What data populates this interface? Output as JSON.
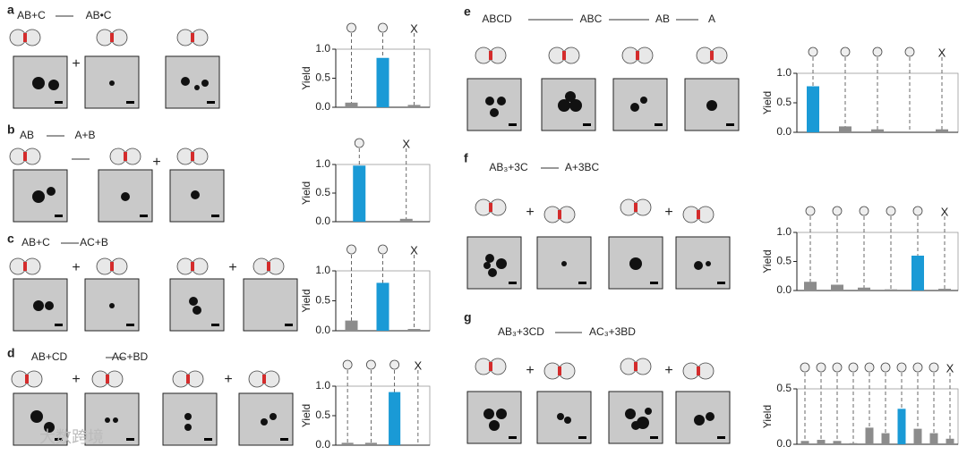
{
  "panels": [
    {
      "label": "a",
      "equation": [
        "AB+C",
        "AB•C"
      ],
      "operators": [
        "+"
      ]
    },
    {
      "label": "b",
      "equation": [
        "AB",
        "A+B"
      ],
      "operators": [
        "+"
      ]
    },
    {
      "label": "c",
      "equation": [
        "AB+C",
        "AC+B"
      ],
      "operators": [
        "+",
        "+"
      ]
    },
    {
      "label": "d",
      "equation": [
        "AB+CD",
        "AC+BD"
      ],
      "operators": [
        "+",
        "+"
      ]
    },
    {
      "label": "e",
      "equation": [
        "ABCD",
        "ABC",
        "AB",
        "A"
      ],
      "operators": []
    },
    {
      "label": "f",
      "equation": [
        "AB₃+3C",
        "A+3BC"
      ],
      "operators": [
        "+",
        "+"
      ]
    },
    {
      "label": "g",
      "equation": [
        "AB₃+3CD",
        "AC₃+3BD"
      ],
      "operators": [
        "+",
        "+"
      ]
    }
  ],
  "watermark": "大数跨境",
  "chart_data": [
    {
      "type": "bar",
      "y_label": "Yield",
      "categories": [
        null,
        null,
        "X"
      ],
      "values": [
        0.08,
        0.85,
        0.04
      ],
      "colors": [
        "#8c8c8c",
        "#1a9ad6",
        "#8c8c8c"
      ],
      "ylim": [
        0,
        1.0
      ],
      "yticks": [
        {
          "value": 0,
          "label": "0.0"
        },
        {
          "value": 0.5,
          "label": "0.5"
        },
        {
          "value": 1.0,
          "label": "1.0"
        }
      ]
    },
    {
      "type": "bar",
      "y_label": "Yield",
      "categories": [
        null,
        "X"
      ],
      "values": [
        0.98,
        0.05
      ],
      "colors": [
        "#1a9ad6",
        "#8c8c8c"
      ],
      "ylim": [
        0,
        1.0
      ],
      "yticks": [
        {
          "value": 0,
          "label": "0.0"
        },
        {
          "value": 0.5,
          "label": "0.5"
        },
        {
          "value": 1.0,
          "label": "1.0"
        }
      ]
    },
    {
      "type": "bar",
      "y_label": "Yield",
      "categories": [
        null,
        null,
        "X"
      ],
      "values": [
        0.17,
        0.8,
        0.03
      ],
      "colors": [
        "#8c8c8c",
        "#1a9ad6",
        "#8c8c8c"
      ],
      "ylim": [
        0,
        1.0
      ],
      "yticks": [
        {
          "value": 0,
          "label": "0.0"
        },
        {
          "value": 0.5,
          "label": "0.5"
        },
        {
          "value": 1.0,
          "label": "1.0"
        }
      ]
    },
    {
      "type": "bar",
      "y_label": "Yield",
      "categories": [
        null,
        null,
        null,
        "X"
      ],
      "values": [
        0.04,
        0.04,
        0.9,
        0
      ],
      "colors": [
        "#8c8c8c",
        "#8c8c8c",
        "#1a9ad6",
        "#8c8c8c"
      ],
      "ylim": [
        0,
        1.0
      ],
      "yticks": [
        {
          "value": 0,
          "label": "0.0"
        },
        {
          "value": 0.5,
          "label": "0.5"
        },
        {
          "value": 1.0,
          "label": "1.0"
        }
      ]
    },
    {
      "type": "bar",
      "y_label": "Yield",
      "categories": [
        null,
        null,
        null,
        null,
        "X"
      ],
      "values": [
        0.78,
        0.1,
        0.05,
        0,
        0.05
      ],
      "colors": [
        "#1a9ad6",
        "#8c8c8c",
        "#8c8c8c",
        "#8c8c8c",
        "#8c8c8c"
      ],
      "ylim": [
        0,
        1.0
      ],
      "yticks": [
        {
          "value": 0,
          "label": "0.0"
        },
        {
          "value": 0.5,
          "label": "0.5"
        },
        {
          "value": 1.0,
          "label": "1.0"
        }
      ]
    },
    {
      "type": "bar",
      "y_label": "Yield",
      "categories": [
        null,
        null,
        null,
        null,
        null,
        "X"
      ],
      "values": [
        0.15,
        0.1,
        0.05,
        0.02,
        0.6,
        0.03
      ],
      "colors": [
        "#8c8c8c",
        "#8c8c8c",
        "#8c8c8c",
        "#8c8c8c",
        "#1a9ad6",
        "#8c8c8c"
      ],
      "ylim": [
        0,
        1.0
      ],
      "yticks": [
        {
          "value": 0,
          "label": "0.0"
        },
        {
          "value": 0.5,
          "label": "0.5"
        },
        {
          "value": 1.0,
          "label": "1.0"
        }
      ]
    },
    {
      "type": "bar",
      "y_label": "Yield",
      "categories": [
        null,
        null,
        null,
        null,
        null,
        null,
        null,
        null,
        null,
        "X"
      ],
      "values": [
        0.03,
        0.04,
        0.03,
        0.01,
        0.15,
        0.1,
        0.32,
        0.14,
        0.1,
        0.05
      ],
      "colors": [
        "#8c8c8c",
        "#8c8c8c",
        "#8c8c8c",
        "#8c8c8c",
        "#8c8c8c",
        "#8c8c8c",
        "#1a9ad6",
        "#8c8c8c",
        "#8c8c8c",
        "#8c8c8c"
      ],
      "ylim": [
        0,
        0.5
      ],
      "yticks": [
        {
          "value": 0,
          "label": "0.0"
        },
        {
          "value": 0.5,
          "label": "0.5"
        }
      ]
    }
  ]
}
